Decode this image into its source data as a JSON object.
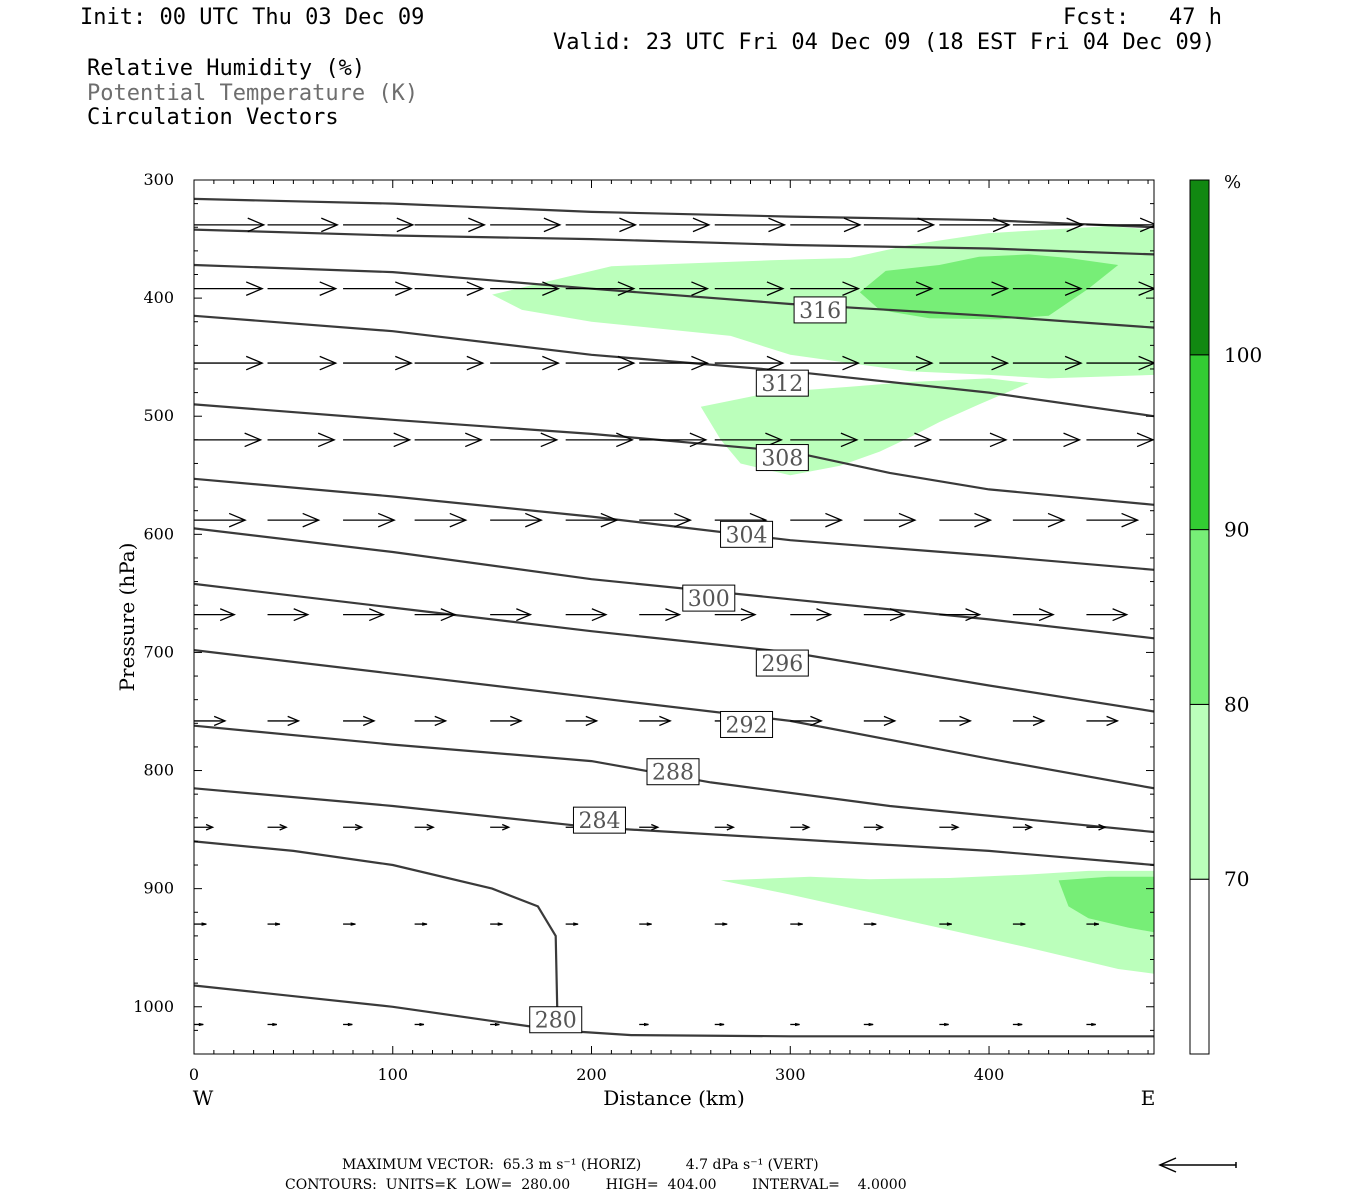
{
  "header": {
    "init": "Init: 00 UTC Thu 03 Dec 09",
    "fcst": "Fcst:   47 h",
    "valid": "Valid: 23 UTC Fri 04 Dec 09 (18 EST Fri 04 Dec 09)",
    "fields": [
      "Relative Humidity (%)",
      "Potential Temperature (K)",
      "Circulation Vectors"
    ]
  },
  "chart_data": {
    "type": "cross-section",
    "x_axis": {
      "label": "Distance (km)",
      "range": [
        0,
        483
      ],
      "ticks": [
        0,
        100,
        200,
        300,
        400
      ],
      "left_end_label": "W",
      "right_end_label": "E"
    },
    "y_axis": {
      "label": "Pressure (hPa)",
      "range": [
        300,
        1040
      ],
      "ticks": [
        300,
        400,
        500,
        600,
        700,
        800,
        900,
        1000
      ],
      "inverted": true
    },
    "rh_colorbar": {
      "unit": "%",
      "levels": [
        70,
        80,
        90,
        100
      ],
      "colors": [
        "#ffffff",
        "#bbffbb",
        "#77ee77",
        "#33cc33",
        "#118811"
      ]
    },
    "rh_regions": [
      {
        "level": 70,
        "polygon": [
          [
            150,
            397
          ],
          [
            210,
            373
          ],
          [
            290,
            368
          ],
          [
            330,
            366
          ],
          [
            360,
            355
          ],
          [
            400,
            345
          ],
          [
            430,
            342
          ],
          [
            460,
            339
          ],
          [
            483,
            342
          ],
          [
            483,
            465
          ],
          [
            430,
            468
          ],
          [
            400,
            465
          ],
          [
            360,
            462
          ],
          [
            330,
            455
          ],
          [
            300,
            448
          ],
          [
            270,
            432
          ],
          [
            200,
            420
          ],
          [
            165,
            410
          ]
        ]
      },
      {
        "level": 70,
        "polygon": [
          [
            255,
            492
          ],
          [
            290,
            480
          ],
          [
            330,
            475
          ],
          [
            360,
            471
          ],
          [
            400,
            468
          ],
          [
            420,
            472
          ],
          [
            395,
            490
          ],
          [
            375,
            505
          ],
          [
            360,
            518
          ],
          [
            345,
            530
          ],
          [
            325,
            542
          ],
          [
            300,
            550
          ],
          [
            275,
            540
          ],
          [
            265,
            520
          ]
        ]
      },
      {
        "level": 70,
        "polygon": [
          [
            265,
            893
          ],
          [
            310,
            890
          ],
          [
            340,
            892
          ],
          [
            380,
            891
          ],
          [
            420,
            888
          ],
          [
            450,
            885
          ],
          [
            483,
            885
          ],
          [
            483,
            972
          ],
          [
            465,
            968
          ],
          [
            445,
            960
          ],
          [
            420,
            950
          ],
          [
            380,
            935
          ],
          [
            340,
            920
          ],
          [
            300,
            905
          ]
        ]
      },
      {
        "level": 80,
        "polygon": [
          [
            335,
            395
          ],
          [
            348,
            377
          ],
          [
            375,
            372
          ],
          [
            395,
            365
          ],
          [
            420,
            363
          ],
          [
            440,
            366
          ],
          [
            465,
            372
          ],
          [
            450,
            392
          ],
          [
            430,
            415
          ],
          [
            405,
            418
          ],
          [
            370,
            417
          ],
          [
            345,
            410
          ]
        ]
      },
      {
        "level": 80,
        "polygon": [
          [
            435,
            893
          ],
          [
            460,
            890
          ],
          [
            483,
            890
          ],
          [
            483,
            937
          ],
          [
            470,
            933
          ],
          [
            450,
            925
          ],
          [
            440,
            915
          ]
        ]
      }
    ],
    "theta_contours": [
      {
        "value": 316,
        "label_at": [
          315,
          410
        ],
        "points": [
          [
            0,
            372
          ],
          [
            100,
            378
          ],
          [
            200,
            392
          ],
          [
            300,
            405
          ],
          [
            400,
            415
          ],
          [
            483,
            425
          ]
        ]
      },
      {
        "value": 312,
        "label_at": [
          296,
          472
        ],
        "points": [
          [
            0,
            415
          ],
          [
            100,
            428
          ],
          [
            200,
            448
          ],
          [
            300,
            462
          ],
          [
            400,
            480
          ],
          [
            483,
            500
          ]
        ]
      },
      {
        "value": 308,
        "label_at": [
          296,
          535
        ],
        "points": [
          [
            0,
            490
          ],
          [
            100,
            503
          ],
          [
            200,
            515
          ],
          [
            300,
            530
          ],
          [
            350,
            548
          ],
          [
            400,
            562
          ],
          [
            483,
            575
          ]
        ]
      },
      {
        "value": 304,
        "label_at": [
          278,
          600
        ],
        "points": [
          [
            0,
            553
          ],
          [
            100,
            568
          ],
          [
            200,
            585
          ],
          [
            300,
            605
          ],
          [
            400,
            618
          ],
          [
            483,
            630
          ]
        ]
      },
      {
        "value": 300,
        "label_at": [
          259,
          654
        ],
        "points": [
          [
            0,
            595
          ],
          [
            100,
            615
          ],
          [
            200,
            638
          ],
          [
            300,
            655
          ],
          [
            400,
            672
          ],
          [
            483,
            688
          ]
        ]
      },
      {
        "value": 296,
        "label_at": [
          296,
          709
        ],
        "points": [
          [
            0,
            642
          ],
          [
            100,
            662
          ],
          [
            200,
            682
          ],
          [
            300,
            700
          ],
          [
            400,
            728
          ],
          [
            483,
            750
          ]
        ]
      },
      {
        "value": 292,
        "label_at": [
          278,
          761
        ],
        "points": [
          [
            0,
            698
          ],
          [
            100,
            718
          ],
          [
            200,
            738
          ],
          [
            300,
            758
          ],
          [
            400,
            790
          ],
          [
            483,
            815
          ]
        ]
      },
      {
        "value": 288,
        "label_at": [
          241,
          801
        ],
        "points": [
          [
            0,
            762
          ],
          [
            100,
            778
          ],
          [
            200,
            792
          ],
          [
            260,
            810
          ],
          [
            350,
            830
          ],
          [
            483,
            852
          ]
        ]
      },
      {
        "value": 284,
        "label_at": [
          204,
          842
        ],
        "points": [
          [
            0,
            815
          ],
          [
            100,
            830
          ],
          [
            200,
            848
          ],
          [
            300,
            858
          ],
          [
            400,
            868
          ],
          [
            483,
            880
          ]
        ]
      },
      {
        "value": 280,
        "label_at": [
          182,
          1011
        ],
        "points": [
          [
            0,
            982
          ],
          [
            100,
            1000
          ],
          [
            183,
            1020
          ],
          [
            220,
            1024
          ],
          [
            300,
            1025
          ],
          [
            483,
            1025
          ]
        ]
      },
      {
        "value": null,
        "points": [
          [
            0,
            316
          ],
          [
            100,
            320
          ],
          [
            200,
            327
          ],
          [
            300,
            331
          ],
          [
            400,
            334
          ],
          [
            483,
            340
          ]
        ]
      },
      {
        "value": null,
        "points": [
          [
            0,
            342
          ],
          [
            100,
            347
          ],
          [
            200,
            350
          ],
          [
            300,
            355
          ],
          [
            400,
            358
          ],
          [
            483,
            363
          ]
        ]
      },
      {
        "value": null,
        "points": [
          [
            0,
            860
          ],
          [
            50,
            868
          ],
          [
            100,
            880
          ],
          [
            150,
            900
          ],
          [
            173,
            915
          ],
          [
            182,
            940
          ],
          [
            183,
            1020
          ]
        ]
      }
    ],
    "vector_rows": [
      {
        "p": 338,
        "x": [
          0,
          37,
          75,
          111,
          149,
          187,
          224,
          262,
          300,
          337,
          375,
          412,
          449,
          486
        ],
        "u": 45,
        "w": 0
      },
      {
        "p": 392,
        "x": [
          0,
          37,
          75,
          111,
          149,
          187,
          224,
          262,
          300,
          337,
          375,
          412,
          449,
          486
        ],
        "u": 44,
        "w": 0
      },
      {
        "p": 455,
        "x": [
          0,
          37,
          75,
          111,
          149,
          187,
          224,
          262,
          300,
          337,
          375,
          412,
          449,
          486
        ],
        "u": 44,
        "w": 0
      },
      {
        "p": 520,
        "x": [
          0,
          37,
          75,
          111,
          149,
          187,
          224,
          262,
          300,
          337,
          375,
          412,
          449,
          486
        ],
        "u": 43,
        "w": 0
      },
      {
        "p": 588,
        "x": [
          0,
          37,
          75,
          111,
          149,
          187,
          224,
          262,
          300,
          337,
          375,
          412,
          449,
          486
        ],
        "u": 33,
        "w": 0
      },
      {
        "p": 668,
        "x": [
          0,
          37,
          75,
          111,
          149,
          187,
          224,
          262,
          300,
          337,
          375,
          412,
          449,
          486
        ],
        "u": 26,
        "w": 0
      },
      {
        "p": 758,
        "x": [
          0,
          37,
          75,
          111,
          149,
          187,
          224,
          262,
          300,
          337,
          375,
          412,
          449,
          486
        ],
        "u": 20,
        "w": 0
      },
      {
        "p": 848,
        "x": [
          0,
          37,
          75,
          111,
          149,
          187,
          224,
          262,
          300,
          337,
          375,
          412,
          449,
          486
        ],
        "u": 12,
        "w": 0
      },
      {
        "p": 930,
        "x": [
          0,
          37,
          75,
          111,
          149,
          187,
          224,
          262,
          300,
          337,
          375,
          412,
          449,
          486
        ],
        "u": 8,
        "w": 0
      },
      {
        "p": 1015,
        "x": [
          0,
          37,
          75,
          111,
          149,
          187,
          224,
          262,
          300,
          337,
          375,
          412,
          449,
          486
        ],
        "u": 6,
        "w": 0
      }
    ],
    "reference_vector": {
      "direction": "left"
    }
  },
  "footer": {
    "line1": "MAXIMUM VECTOR:  65.3 m s⁻¹ (HORIZ)          4.7 dPa s⁻¹ (VERT)",
    "line2": "CONTOURS:  UNITS=K  LOW=  280.00        HIGH=  404.00        INTERVAL=    4.0000"
  }
}
